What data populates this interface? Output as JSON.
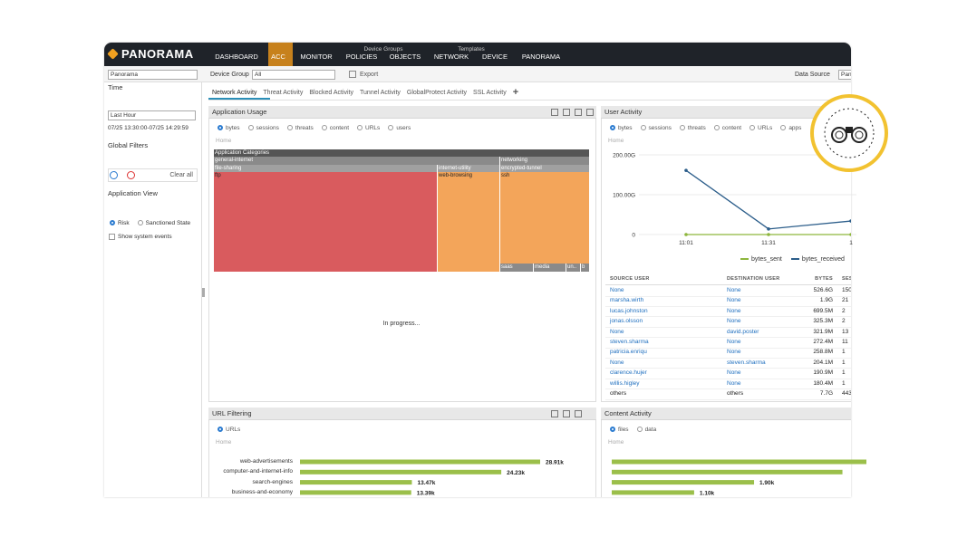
{
  "nav": {
    "logo": "PANORAMA",
    "group_labels": [
      "Device Groups",
      "Templates"
    ],
    "items": [
      "DASHBOARD",
      "ACC",
      "MONITOR",
      "POLICIES",
      "OBJECTS",
      "NETWORK",
      "DEVICE",
      "PANORAMA"
    ]
  },
  "toolbar": {
    "context": "Panorama",
    "device_group_label": "Device Group",
    "device_group": "All",
    "export": "Export",
    "data_source_label": "Data Source",
    "data_source": "Pano"
  },
  "sidebar": {
    "time_label": "Time",
    "time_range": "Last Hour",
    "time_span": "07/25 13:30:00-07/25 14:29:59",
    "global_filters_label": "Global Filters",
    "clear_all": "Clear all",
    "application_view_label": "Application View",
    "view_options": [
      "Risk",
      "Sanctioned State"
    ],
    "show_system_events": "Show system events"
  },
  "tabs": [
    "Network Activity",
    "Threat Activity",
    "Blocked Activity",
    "Tunnel Activity",
    "GlobalProtect Activity",
    "SSL Activity"
  ],
  "application_usage": {
    "title": "Application Usage",
    "filters": [
      "bytes",
      "sessions",
      "threats",
      "content",
      "URLs",
      "users"
    ],
    "breadcrumb": "Home",
    "treemap": {
      "root": "Application Categories",
      "categories": [
        "general-internet",
        "networking"
      ],
      "subcategories": [
        "file-sharing",
        "internet-utility",
        "encrypted-tunnel"
      ],
      "applications": [
        "ftp",
        "web-browsing",
        "ssh",
        "saas",
        "media",
        "un..",
        "b"
      ]
    },
    "status": "In progress..."
  },
  "user_activity": {
    "title": "User Activity",
    "filters": [
      "bytes",
      "sessions",
      "threats",
      "content",
      "URLs",
      "apps"
    ],
    "breadcrumb": "Home",
    "chart_data": {
      "type": "line",
      "categories": [
        "11:01",
        "11:31",
        "1"
      ],
      "series": [
        {
          "name": "bytes_sent",
          "color": "#8db63c",
          "values": [
            0,
            0,
            0
          ]
        },
        {
          "name": "bytes_received",
          "color": "#2b5d8a",
          "values": [
            161,
            14,
            34
          ]
        }
      ],
      "ylim": [
        0,
        225
      ],
      "yticks": [
        0,
        {
          "value": 100,
          "label": "100.00G"
        },
        {
          "value": 200,
          "label": "200.00G"
        }
      ],
      "grid": true
    },
    "table": {
      "columns": [
        "SOURCE USER",
        "DESTINATION USER",
        "BYTES",
        "SES"
      ],
      "rows": [
        [
          "None",
          "None",
          "526.6G",
          "150"
        ],
        [
          "marsha.wirth",
          "None",
          "1.9G",
          "21"
        ],
        [
          "lucas.johnston",
          "None",
          "699.5M",
          "2"
        ],
        [
          "jonas.olsson",
          "None",
          "325.3M",
          "2"
        ],
        [
          "None",
          "david.poster",
          "321.9M",
          "13"
        ],
        [
          "steven.sharma",
          "None",
          "272.4M",
          "11"
        ],
        [
          "patricia.enriqu",
          "None",
          "258.8M",
          "1"
        ],
        [
          "None",
          "steven.sharma",
          "204.1M",
          "1"
        ],
        [
          "clarence.hujer",
          "None",
          "190.9M",
          "1"
        ],
        [
          "willis.higley",
          "None",
          "180.4M",
          "1"
        ],
        [
          "others",
          "others",
          "7.7G",
          "443"
        ]
      ]
    }
  },
  "url_filtering": {
    "title": "URL Filtering",
    "filters": [
      "URLs"
    ],
    "breadcrumb": "Home",
    "chart_data": {
      "type": "bar",
      "orientation": "horizontal",
      "categories": [
        "web-advertisements",
        "computer-and-internet-info",
        "search-engines",
        "business-and-economy"
      ],
      "values": [
        28910,
        24230,
        13470,
        13390
      ],
      "value_labels": [
        "28.91k",
        "24.23k",
        "13.47k",
        "13.39k"
      ],
      "color": "#9bbf4a"
    }
  },
  "content_activity": {
    "title": "Content Activity",
    "filters": [
      "files",
      "data"
    ],
    "breadcrumb": "Home",
    "chart_data": {
      "type": "bar",
      "orientation": "horizontal",
      "values": [
        3400,
        3080,
        1900,
        1100
      ],
      "value_labels": [
        null,
        null,
        "1.90k",
        "1.10k"
      ],
      "color": "#9bbf4a"
    }
  }
}
